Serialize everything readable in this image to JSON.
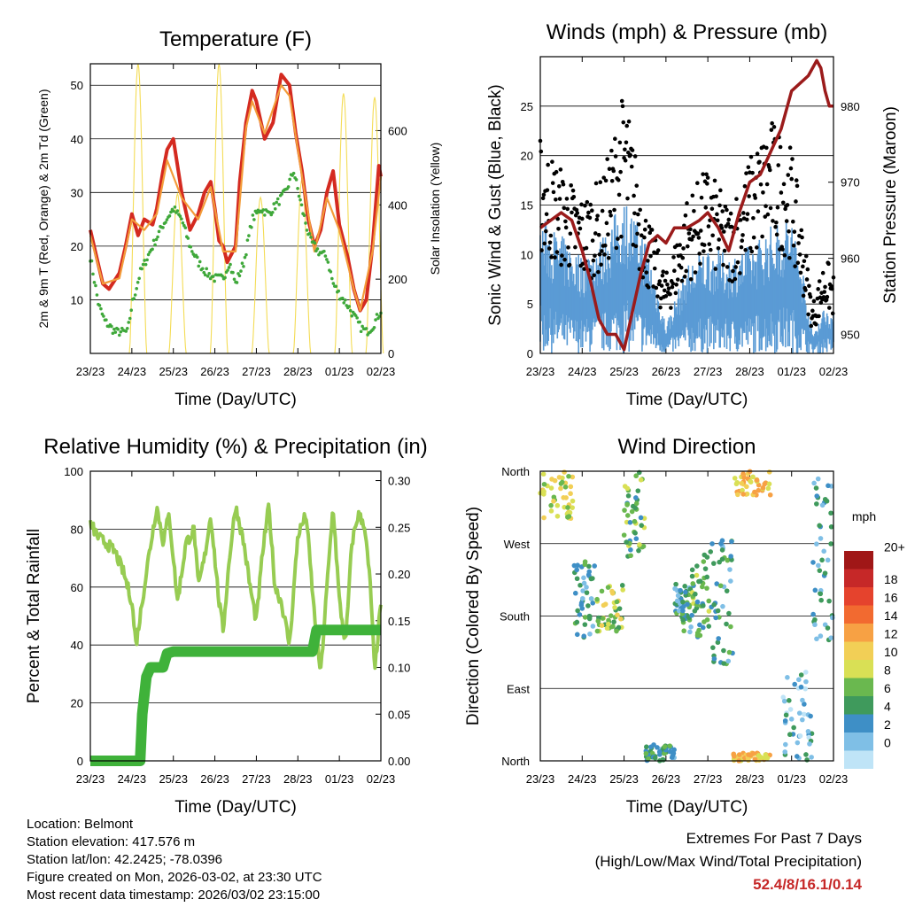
{
  "time_ticks": [
    "23/23",
    "24/23",
    "25/23",
    "26/23",
    "27/23",
    "28/23",
    "01/23",
    "02/23"
  ],
  "chart_data": [
    {
      "type": "line",
      "title": "Temperature (F)",
      "xlabel": "Time (Day/UTC)",
      "ylabel": "2m & 9m T (Red, Orange) & 2m Td (Green)",
      "ylabel_right": "Solar Insolation (Yellow)",
      "ylim": [
        0,
        54
      ],
      "yticks": [
        10,
        20,
        30,
        40,
        50
      ],
      "ylim_right": [
        0,
        780
      ],
      "yticks_right": [
        0,
        200,
        400,
        600
      ],
      "x_days": [
        0,
        7
      ],
      "series": [
        {
          "name": "2m T",
          "color": "#d42a20",
          "x": [
            0,
            0.15,
            0.3,
            0.45,
            0.7,
            0.85,
            1.0,
            1.15,
            1.3,
            1.5,
            1.6,
            1.75,
            1.85,
            2.0,
            2.2,
            2.4,
            2.6,
            2.75,
            2.9,
            3.0,
            3.1,
            3.2,
            3.3,
            3.5,
            3.6,
            3.75,
            3.9,
            4.0,
            4.2,
            4.4,
            4.6,
            4.8,
            4.95,
            5.1,
            5.25,
            5.4,
            5.55,
            5.7,
            5.85,
            6.0,
            6.2,
            6.35,
            6.5,
            6.65,
            6.8,
            6.95,
            7.0
          ],
          "values": [
            23,
            18,
            13,
            12,
            15,
            20,
            26,
            22,
            25,
            24,
            27,
            34,
            38,
            40,
            30,
            23,
            26,
            30,
            32,
            27,
            21,
            20,
            17,
            20,
            32,
            43,
            49,
            47,
            40,
            43,
            52,
            50,
            41,
            34,
            25,
            20,
            23,
            30,
            34,
            24,
            18,
            12,
            8,
            10,
            20,
            35,
            33
          ]
        },
        {
          "name": "9m T",
          "color": "#f39c3a",
          "x": [
            0,
            0.3,
            0.7,
            1.0,
            1.3,
            1.6,
            1.85,
            2.2,
            2.6,
            2.9,
            3.2,
            3.5,
            3.75,
            3.9,
            4.2,
            4.6,
            4.8,
            5.1,
            5.4,
            5.7,
            6.0,
            6.35,
            6.5,
            6.8,
            7.0
          ],
          "values": [
            22,
            13,
            14,
            25,
            23,
            26,
            36,
            29,
            25,
            31,
            19,
            19,
            42,
            47,
            41,
            50,
            48,
            33,
            19,
            29,
            23,
            12,
            8,
            19,
            33
          ]
        },
        {
          "name": "2m Td",
          "color": "#3fa83a",
          "x": [
            0,
            0.2,
            0.35,
            0.6,
            0.9,
            1.0,
            1.2,
            1.5,
            1.75,
            2.0,
            2.2,
            2.4,
            2.6,
            2.8,
            3.0,
            3.2,
            3.35,
            3.5,
            3.7,
            3.9,
            4.1,
            4.3,
            4.5,
            4.7,
            4.9,
            5.1,
            5.3,
            5.5,
            5.7,
            5.85,
            6.0,
            6.2,
            6.35,
            6.5,
            6.65,
            6.8,
            7.0
          ],
          "values": [
            18,
            9,
            6,
            4,
            4,
            9,
            15,
            20,
            24,
            27,
            25,
            20,
            17,
            15,
            14,
            14,
            17,
            13,
            17,
            25,
            27,
            26,
            28,
            30,
            34,
            27,
            21,
            19,
            18,
            13,
            11,
            9,
            7,
            5,
            4,
            5,
            8
          ]
        }
      ],
      "insolation": {
        "name": "Solar Insolation",
        "color": "#f4dc55",
        "peaks": [
          [
            1.15,
            780
          ],
          [
            2.1,
            430
          ],
          [
            3.1,
            780
          ],
          [
            4.1,
            420
          ],
          [
            5.1,
            470
          ],
          [
            6.1,
            700
          ],
          [
            6.85,
            690
          ]
        ]
      }
    },
    {
      "type": "scatter",
      "title": "Winds (mph) & Pressure (mb)",
      "xlabel": "Time (Day/UTC)",
      "ylabel": "Sonic Wind & Gust (Blue, Black)",
      "ylabel_right": "Station Pressure (Maroon)",
      "ylim": [
        0,
        30
      ],
      "yticks": [
        0,
        5,
        10,
        15,
        20,
        25
      ],
      "ylim_right": [
        947.5,
        986.5
      ],
      "yticks_right": [
        950,
        960,
        970,
        980
      ],
      "x_days": [
        0,
        7
      ],
      "series": [
        {
          "name": "Sonic Wind",
          "color": "#5a9bd5",
          "envelope_x": [
            0,
            0.5,
            1.0,
            1.5,
            2.0,
            2.5,
            3.0,
            3.5,
            4.0,
            4.5,
            5.0,
            5.5,
            6.0,
            6.3,
            6.5,
            6.8,
            7.0
          ],
          "envelope_max": [
            14,
            12,
            10,
            12,
            16,
            12,
            3,
            9,
            11,
            10,
            11,
            13,
            14,
            8,
            2,
            5,
            4
          ]
        },
        {
          "name": "Gust",
          "color": "#000000",
          "envelope_x": [
            0,
            0.5,
            1.0,
            1.5,
            2.0,
            2.5,
            3.0,
            3.5,
            4.0,
            4.5,
            5.0,
            5.5,
            6.0,
            6.3,
            6.5,
            6.8,
            7.0
          ],
          "envelope_max": [
            22,
            19,
            16,
            18,
            27,
            15,
            8,
            16,
            19,
            15,
            20,
            24,
            21,
            12,
            5,
            10,
            8
          ]
        },
        {
          "name": "Station Pressure",
          "color": "#9b1b1b",
          "x": [
            0,
            0.25,
            0.5,
            0.75,
            1.0,
            1.2,
            1.4,
            1.6,
            1.8,
            2.0,
            2.2,
            2.4,
            2.6,
            2.8,
            3.0,
            3.2,
            3.5,
            3.8,
            4.0,
            4.25,
            4.5,
            4.75,
            5.0,
            5.25,
            5.5,
            5.75,
            6.0,
            6.2,
            6.4,
            6.6,
            6.7,
            6.8,
            6.9,
            7.0
          ],
          "values": [
            964,
            965,
            966,
            965,
            961,
            957,
            952,
            950,
            950,
            948,
            953,
            958,
            962,
            963,
            962,
            964,
            964,
            965,
            966,
            964,
            961,
            966,
            970,
            971,
            974,
            977,
            982,
            983,
            984,
            986,
            985,
            982,
            980,
            980
          ]
        }
      ]
    },
    {
      "type": "line",
      "title": "Relative Humidity (%) & Precipitation (in)",
      "xlabel": "Time (Day/UTC)",
      "ylabel": "Percent & Total Rainfall",
      "ylim": [
        0,
        100
      ],
      "yticks": [
        0,
        20,
        40,
        60,
        80,
        100
      ],
      "ylim_right": [
        0,
        0.31
      ],
      "yticks_right": [
        "0.00",
        "0.05",
        "0.10",
        "0.15",
        "0.20",
        "0.25",
        "0.30"
      ],
      "x_days": [
        0,
        7
      ],
      "series": [
        {
          "name": "Relative Humidity",
          "color": "#97cc52",
          "x": [
            0,
            0.2,
            0.4,
            0.6,
            0.8,
            1.0,
            1.1,
            1.25,
            1.4,
            1.6,
            1.75,
            1.9,
            2.1,
            2.3,
            2.5,
            2.6,
            2.75,
            2.9,
            3.1,
            3.2,
            3.35,
            3.5,
            3.7,
            3.85,
            4.0,
            4.15,
            4.3,
            4.45,
            4.6,
            4.8,
            5.0,
            5.2,
            5.4,
            5.55,
            5.7,
            5.85,
            6.0,
            6.15,
            6.3,
            6.45,
            6.6,
            6.75,
            6.85,
            7.0
          ],
          "values": [
            82,
            77,
            75,
            72,
            65,
            55,
            40,
            55,
            70,
            88,
            76,
            85,
            55,
            75,
            80,
            60,
            70,
            85,
            55,
            45,
            70,
            88,
            75,
            60,
            48,
            72,
            88,
            60,
            55,
            40,
            78,
            85,
            50,
            30,
            60,
            88,
            55,
            40,
            75,
            85,
            82,
            60,
            30,
            55
          ]
        },
        {
          "name": "Total Precipitation",
          "color": "#3fb23a",
          "x": [
            0,
            1.2,
            1.25,
            1.35,
            1.45,
            1.75,
            1.85,
            2.0,
            3.0,
            4.0,
            5.0,
            5.35,
            5.45,
            6.0,
            7.0
          ],
          "values": [
            0.0,
            0.0,
            0.05,
            0.09,
            0.1,
            0.1,
            0.115,
            0.117,
            0.117,
            0.117,
            0.117,
            0.117,
            0.14,
            0.14,
            0.14
          ]
        }
      ]
    },
    {
      "type": "scatter",
      "title": "Wind Direction",
      "xlabel": "Time (Day/UTC)",
      "ylabel": "Direction (Colored By Speed)",
      "ylim": [
        0,
        360
      ],
      "yticks": [
        "North",
        "East",
        "South",
        "West",
        "North"
      ],
      "yticks_values": [
        0,
        90,
        180,
        270,
        360
      ],
      "x_days": [
        0,
        7
      ],
      "clusters": [
        {
          "x": [
            0.0,
            0.8
          ],
          "dir": [
            300,
            360
          ],
          "speed": 10
        },
        {
          "x": [
            0.8,
            1.3
          ],
          "dir": [
            150,
            250
          ],
          "speed": 5
        },
        {
          "x": [
            1.3,
            2.0
          ],
          "dir": [
            160,
            220
          ],
          "speed": 9
        },
        {
          "x": [
            2.0,
            2.5
          ],
          "dir": [
            250,
            360
          ],
          "speed": 7
        },
        {
          "x": [
            2.5,
            3.2
          ],
          "dir": [
            0,
            20
          ],
          "speed": 5
        },
        {
          "x": [
            3.2,
            3.6
          ],
          "dir": [
            160,
            220
          ],
          "speed": 5
        },
        {
          "x": [
            3.6,
            4.1
          ],
          "dir": [
            150,
            260
          ],
          "speed": 7
        },
        {
          "x": [
            4.1,
            4.6
          ],
          "dir": [
            120,
            280
          ],
          "speed": 5
        },
        {
          "x": [
            4.6,
            5.5
          ],
          "dir": [
            330,
            360
          ],
          "speed": 12
        },
        {
          "x": [
            4.6,
            5.5
          ],
          "dir": [
            0,
            10
          ],
          "speed": 12
        },
        {
          "x": [
            5.8,
            6.5
          ],
          "dir": [
            0,
            120
          ],
          "speed": 3
        },
        {
          "x": [
            6.5,
            7.0
          ],
          "dir": [
            150,
            360
          ],
          "speed": 4
        }
      ],
      "colorbar": {
        "title": "mph",
        "labels": [
          "20+",
          "18",
          "16",
          "14",
          "12",
          "10",
          "8",
          "6",
          "4",
          "2",
          "0"
        ],
        "colors": [
          "#a01717",
          "#c62828",
          "#e5432d",
          "#f26a30",
          "#f7a144",
          "#f2cf56",
          "#d9e055",
          "#6ab84f",
          "#3f9a5c",
          "#3e8fc6",
          "#7fbfe6",
          "#bfe4f7"
        ]
      }
    }
  ],
  "footer": {
    "location": "Location: Belmont",
    "elevation": "Station elevation: 417.576 m",
    "latlon": "Station lat/lon: 42.2425; -78.0396",
    "created": "Figure created on Mon, 2026-03-02, at 23:30 UTC",
    "recent": "Most recent data timestamp: 2026/03/02 23:15:00",
    "extremes_title": "Extremes For Past 7 Days",
    "extremes_desc": "(High/Low/Max Wind/Total Precipitation)",
    "extremes_value": "52.4/8/16.1/0.14"
  }
}
